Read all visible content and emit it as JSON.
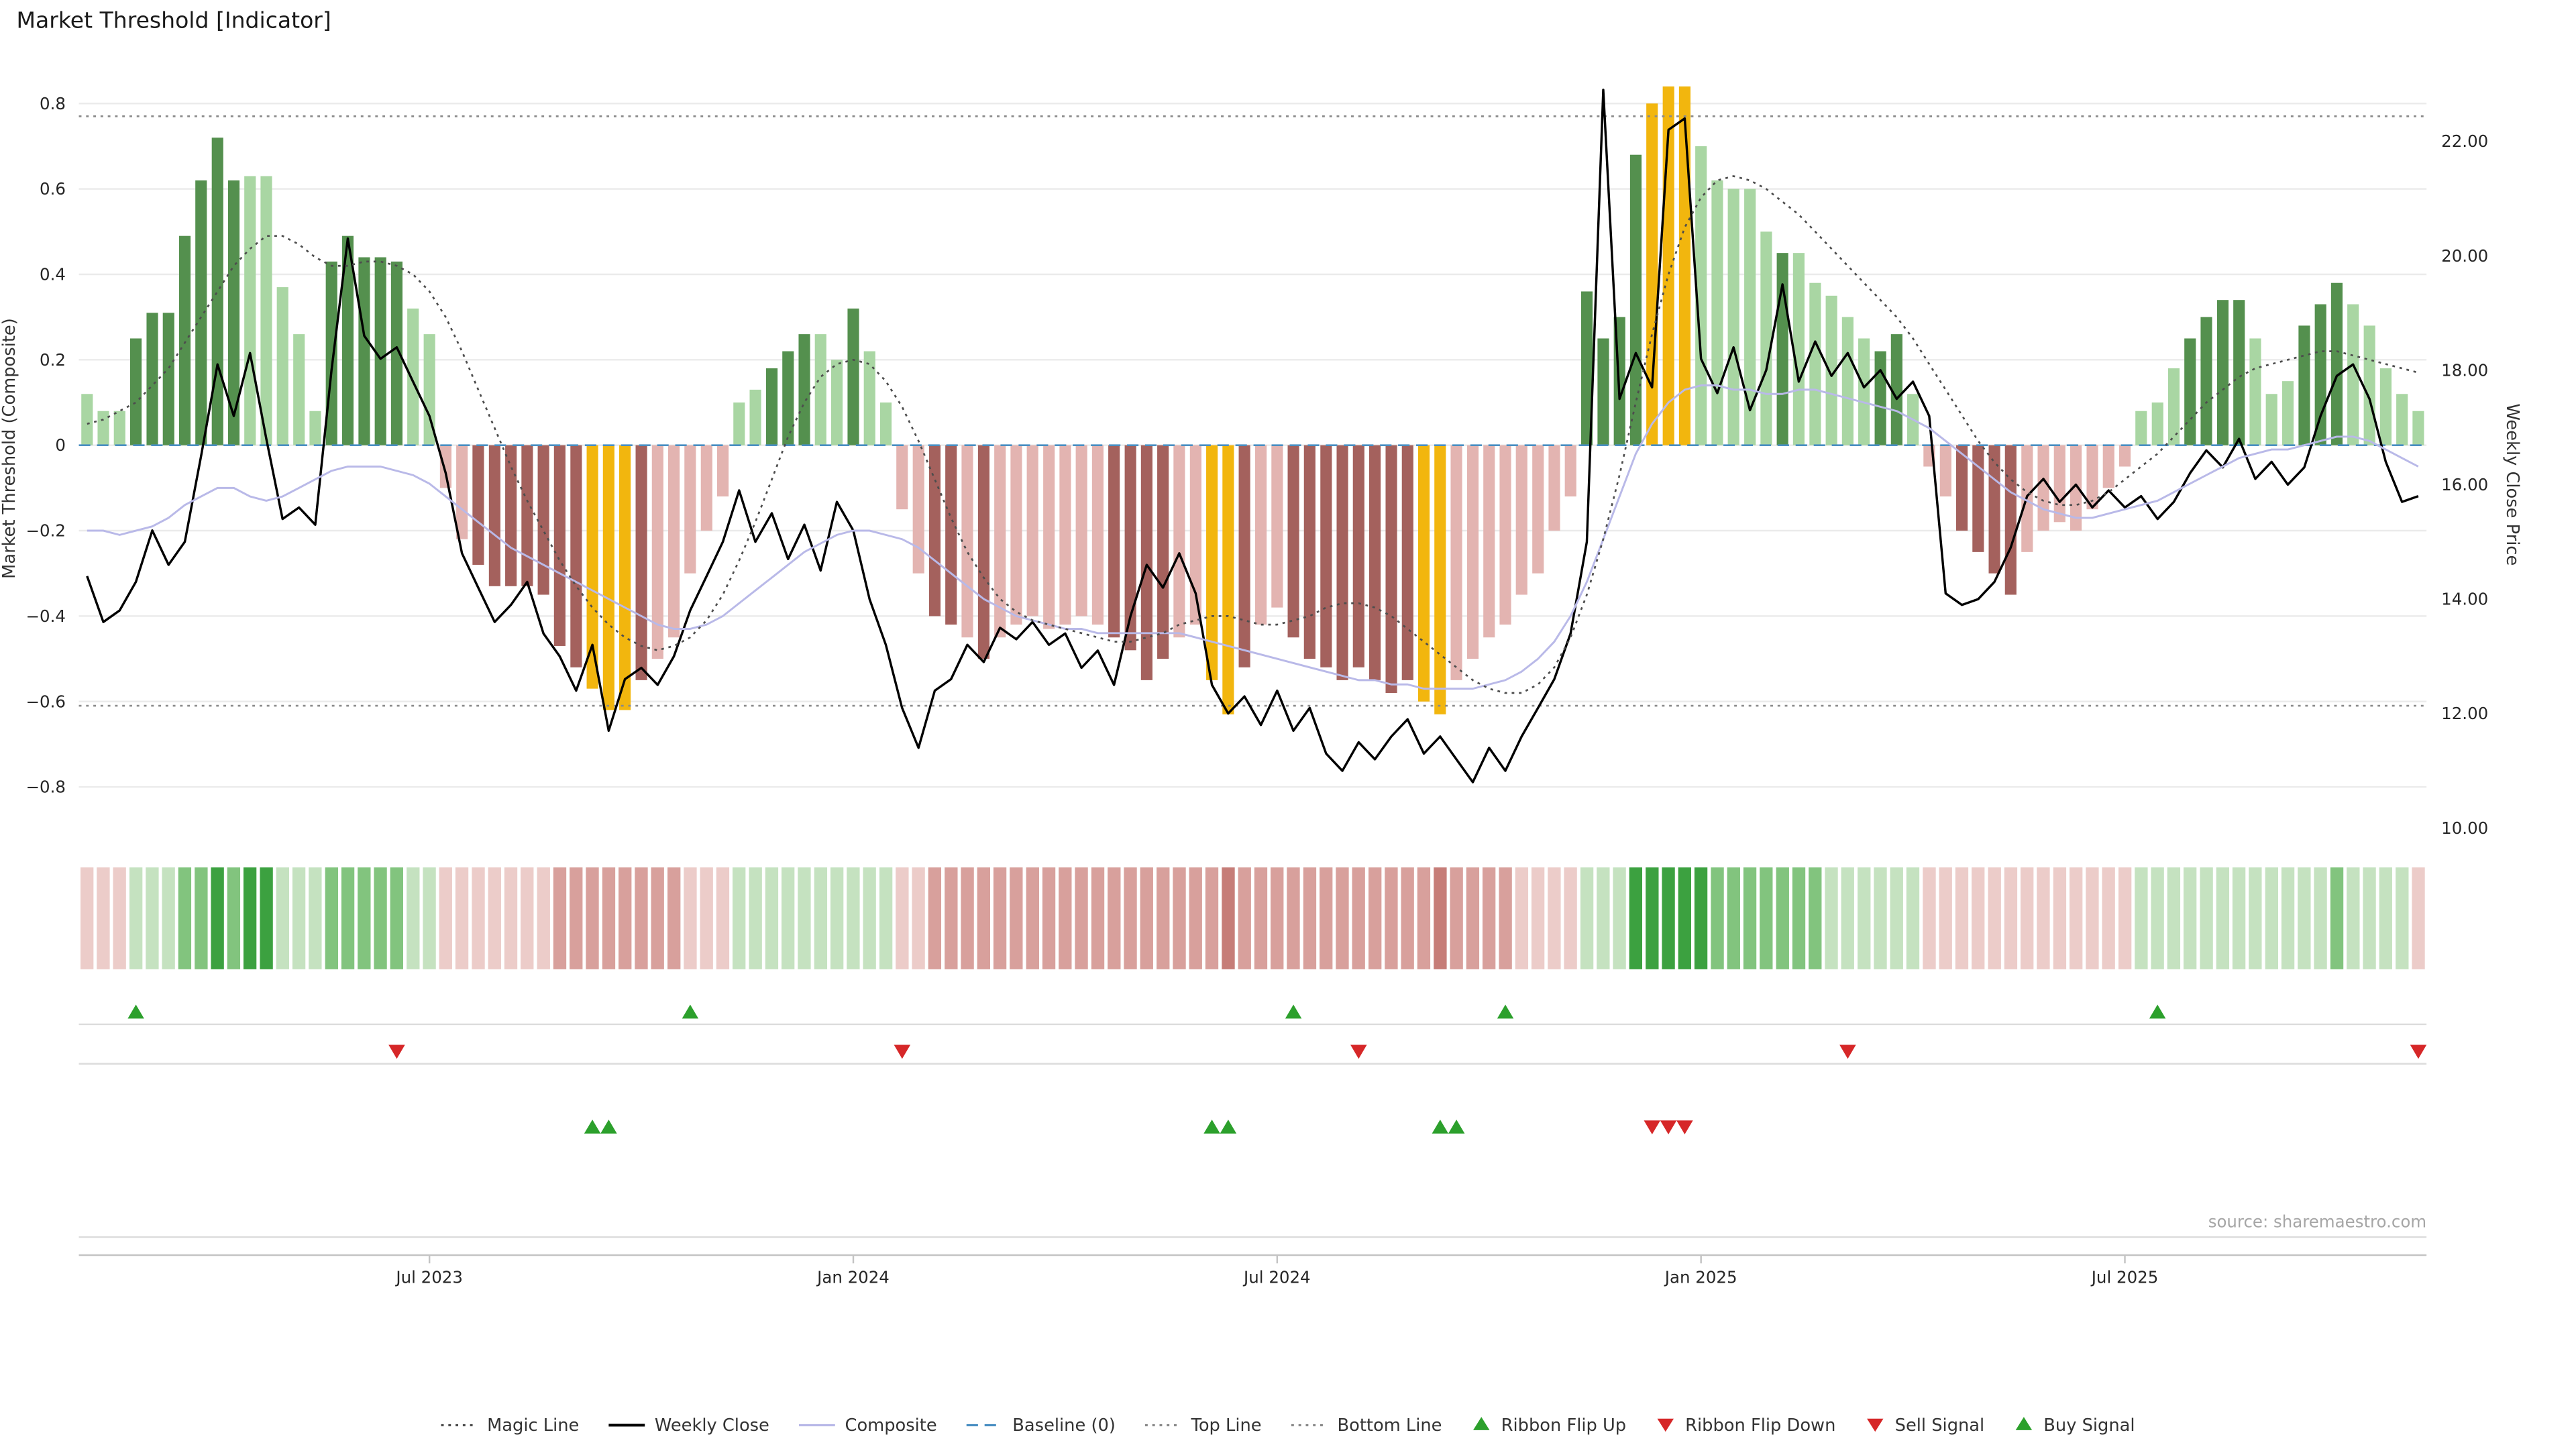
{
  "title": "Market Threshold [Indicator]",
  "source": "source: sharemaestro.com",
  "axes": {
    "left": {
      "label": "Market Threshold (Composite)",
      "ticks": [
        {
          "label": "0.8",
          "value": 0.8
        },
        {
          "label": "0.6",
          "value": 0.6
        },
        {
          "label": "0.4",
          "value": 0.4
        },
        {
          "label": "0.2",
          "value": 0.2
        },
        {
          "label": "0",
          "value": 0
        },
        {
          "label": "−0.2",
          "value": -0.2
        },
        {
          "label": "−0.4",
          "value": -0.4
        },
        {
          "label": "−0.6",
          "value": -0.6
        },
        {
          "label": "−0.8",
          "value": -0.8
        }
      ]
    },
    "right": {
      "label": "Weekly Close Price",
      "ticks": [
        {
          "label": "22.00",
          "value": 22
        },
        {
          "label": "20.00",
          "value": 20
        },
        {
          "label": "18.00",
          "value": 18
        },
        {
          "label": "16.00",
          "value": 16
        },
        {
          "label": "14.00",
          "value": 14
        },
        {
          "label": "12.00",
          "value": 12
        },
        {
          "label": "10.00",
          "value": 10
        }
      ]
    },
    "x": {
      "ticks": [
        {
          "label": "Jul 2023",
          "index": 21
        },
        {
          "label": "Jan 2024",
          "index": 47
        },
        {
          "label": "Jul 2024",
          "index": 73
        },
        {
          "label": "Jan 2025",
          "index": 99
        },
        {
          "label": "Jul 2025",
          "index": 125
        }
      ]
    }
  },
  "colors": {
    "bar_palette": {
      "dg": "#54904e",
      "lg": "#a9d6a3",
      "gd": "#f2b60e",
      "pk": "#e3b4b1",
      "dr": "#a4615d"
    },
    "ribbon_palette": {
      "3": "#3ca140",
      "2": "#82c47e",
      "1": "#c5e2c0",
      "-1": "#ecccc9",
      "-2": "#d8a09c",
      "-3": "#c67d78"
    },
    "signal_green": "#2ca02c",
    "signal_red": "#d62728",
    "grid": "#ebebeb",
    "separator": "#dcdcdc",
    "axis_line": "#c4c4c4"
  },
  "chart_data": {
    "type": "bar",
    "title": "Market Threshold [Indicator]",
    "ylabel_left": "Market Threshold (Composite)",
    "ylabel_right": "Weekly Close Price",
    "ylim_left": [
      -0.9,
      0.9
    ],
    "ylim_right": [
      10,
      22
    ],
    "x_unit": "week",
    "x_span": "Feb 2023 - Nov 2025",
    "n": 144,
    "bars": {
      "name": "Market Threshold",
      "values": [
        0.12,
        0.08,
        0.08,
        0.25,
        0.31,
        0.31,
        0.49,
        0.62,
        0.72,
        0.62,
        0.63,
        0.63,
        0.37,
        0.26,
        0.08,
        0.43,
        0.49,
        0.44,
        0.44,
        0.43,
        0.32,
        0.26,
        -0.1,
        -0.22,
        -0.28,
        -0.33,
        -0.33,
        -0.33,
        -0.35,
        -0.47,
        -0.52,
        -0.57,
        -0.62,
        -0.62,
        -0.55,
        -0.5,
        -0.45,
        -0.3,
        -0.2,
        -0.12,
        0.1,
        0.13,
        0.18,
        0.22,
        0.26,
        0.26,
        0.2,
        0.32,
        0.22,
        0.1,
        -0.15,
        -0.3,
        -0.4,
        -0.42,
        -0.45,
        -0.5,
        -0.45,
        -0.42,
        -0.4,
        -0.43,
        -0.42,
        -0.4,
        -0.42,
        -0.45,
        -0.48,
        -0.55,
        -0.5,
        -0.45,
        -0.42,
        -0.55,
        -0.63,
        -0.52,
        -0.42,
        -0.38,
        -0.45,
        -0.5,
        -0.52,
        -0.55,
        -0.52,
        -0.55,
        -0.58,
        -0.55,
        -0.6,
        -0.63,
        -0.55,
        -0.5,
        -0.45,
        -0.42,
        -0.35,
        -0.3,
        -0.2,
        -0.12,
        0.36,
        0.25,
        0.3,
        0.68,
        0.8,
        0.84,
        0.84,
        0.7,
        0.62,
        0.6,
        0.6,
        0.5,
        0.45,
        0.45,
        0.38,
        0.35,
        0.3,
        0.25,
        0.22,
        0.26,
        0.12,
        -0.05,
        -0.12,
        -0.2,
        -0.25,
        -0.3,
        -0.35,
        -0.25,
        -0.2,
        -0.18,
        -0.2,
        -0.15,
        -0.1,
        -0.05,
        0.08,
        0.1,
        0.18,
        0.25,
        0.3,
        0.34,
        0.34,
        0.25,
        0.12,
        0.15,
        0.28,
        0.33,
        0.38,
        0.33,
        0.28,
        0.18,
        0.12,
        0.08
      ],
      "colors": [
        "lg",
        "lg",
        "lg",
        "dg",
        "dg",
        "dg",
        "dg",
        "dg",
        "dg",
        "dg",
        "lg",
        "lg",
        "lg",
        "lg",
        "lg",
        "dg",
        "dg",
        "dg",
        "dg",
        "dg",
        "lg",
        "lg",
        "pk",
        "pk",
        "dr",
        "dr",
        "dr",
        "dr",
        "dr",
        "dr",
        "dr",
        "gd",
        "gd",
        "gd",
        "dr",
        "pk",
        "pk",
        "pk",
        "pk",
        "pk",
        "lg",
        "lg",
        "dg",
        "dg",
        "dg",
        "lg",
        "lg",
        "dg",
        "lg",
        "lg",
        "pk",
        "pk",
        "dr",
        "dr",
        "pk",
        "dr",
        "pk",
        "pk",
        "pk",
        "pk",
        "pk",
        "pk",
        "pk",
        "dr",
        "dr",
        "dr",
        "dr",
        "pk",
        "pk",
        "gd",
        "gd",
        "dr",
        "pk",
        "pk",
        "dr",
        "dr",
        "dr",
        "dr",
        "dr",
        "dr",
        "dr",
        "dr",
        "gd",
        "gd",
        "pk",
        "pk",
        "pk",
        "pk",
        "pk",
        "pk",
        "pk",
        "pk",
        "dg",
        "dg",
        "dg",
        "dg",
        "gd",
        "gd",
        "gd",
        "lg",
        "lg",
        "lg",
        "lg",
        "lg",
        "dg",
        "lg",
        "lg",
        "lg",
        "lg",
        "lg",
        "dg",
        "dg",
        "lg",
        "pk",
        "pk",
        "dr",
        "dr",
        "dr",
        "dr",
        "pk",
        "pk",
        "pk",
        "pk",
        "pk",
        "pk",
        "pk",
        "lg",
        "lg",
        "lg",
        "dg",
        "dg",
        "dg",
        "dg",
        "lg",
        "lg",
        "lg",
        "dg",
        "dg",
        "dg",
        "lg",
        "lg",
        "lg",
        "lg",
        "lg"
      ]
    },
    "lines": [
      {
        "name": "Weekly Close",
        "axis": "right",
        "color": "#000000",
        "style": "solid",
        "width": 1.4,
        "values": [
          14.4,
          13.6,
          13.8,
          14.3,
          15.2,
          14.6,
          15.0,
          16.5,
          18.1,
          17.2,
          18.3,
          16.8,
          15.4,
          15.6,
          15.3,
          18.0,
          20.3,
          18.6,
          18.2,
          18.4,
          17.8,
          17.2,
          16.2,
          14.8,
          14.2,
          13.6,
          13.9,
          14.3,
          13.4,
          13.0,
          12.4,
          13.2,
          11.7,
          12.6,
          12.8,
          12.5,
          13.0,
          13.8,
          14.4,
          15.0,
          15.9,
          15.0,
          15.5,
          14.7,
          15.3,
          14.5,
          15.7,
          15.2,
          14.0,
          13.2,
          12.1,
          11.4,
          12.4,
          12.6,
          13.2,
          12.9,
          13.5,
          13.3,
          13.6,
          13.2,
          13.4,
          12.8,
          13.1,
          12.5,
          13.7,
          14.6,
          14.2,
          14.8,
          14.1,
          12.5,
          12.0,
          12.3,
          11.8,
          12.4,
          11.7,
          12.1,
          11.3,
          11.0,
          11.5,
          11.2,
          11.6,
          11.9,
          11.3,
          11.6,
          11.2,
          10.8,
          11.4,
          11.0,
          11.6,
          12.1,
          12.6,
          13.4,
          15.0,
          22.9,
          17.5,
          18.3,
          17.7,
          22.2,
          22.4,
          18.2,
          17.6,
          18.4,
          17.3,
          18.0,
          19.5,
          17.8,
          18.5,
          17.9,
          18.3,
          17.7,
          18.0,
          17.5,
          17.8,
          17.2,
          14.1,
          13.9,
          14.0,
          14.3,
          14.9,
          15.8,
          16.1,
          15.7,
          16.0,
          15.6,
          15.9,
          15.6,
          15.8,
          15.4,
          15.7,
          16.2,
          16.6,
          16.3,
          16.8,
          16.1,
          16.4,
          16.0,
          16.3,
          17.2,
          17.9,
          18.1,
          17.5,
          16.4,
          15.7,
          15.8
        ]
      },
      {
        "name": "Composite",
        "axis": "left",
        "color": "#b9b9e8",
        "style": "solid",
        "width": 1.2,
        "values": [
          -0.2,
          -0.2,
          -0.21,
          -0.2,
          -0.19,
          -0.17,
          -0.14,
          -0.12,
          -0.1,
          -0.1,
          -0.12,
          -0.13,
          -0.12,
          -0.1,
          -0.08,
          -0.06,
          -0.05,
          -0.05,
          -0.05,
          -0.06,
          -0.07,
          -0.09,
          -0.12,
          -0.15,
          -0.18,
          -0.21,
          -0.24,
          -0.26,
          -0.28,
          -0.3,
          -0.32,
          -0.34,
          -0.36,
          -0.38,
          -0.4,
          -0.42,
          -0.43,
          -0.43,
          -0.42,
          -0.4,
          -0.37,
          -0.34,
          -0.31,
          -0.28,
          -0.25,
          -0.23,
          -0.21,
          -0.2,
          -0.2,
          -0.21,
          -0.22,
          -0.24,
          -0.27,
          -0.3,
          -0.33,
          -0.36,
          -0.38,
          -0.4,
          -0.41,
          -0.42,
          -0.43,
          -0.43,
          -0.44,
          -0.44,
          -0.44,
          -0.44,
          -0.44,
          -0.44,
          -0.45,
          -0.46,
          -0.47,
          -0.48,
          -0.49,
          -0.5,
          -0.51,
          -0.52,
          -0.53,
          -0.54,
          -0.55,
          -0.55,
          -0.56,
          -0.56,
          -0.57,
          -0.57,
          -0.57,
          -0.57,
          -0.56,
          -0.55,
          -0.53,
          -0.5,
          -0.46,
          -0.4,
          -0.32,
          -0.22,
          -0.12,
          -0.02,
          0.05,
          0.1,
          0.13,
          0.14,
          0.14,
          0.13,
          0.13,
          0.12,
          0.12,
          0.13,
          0.13,
          0.12,
          0.11,
          0.1,
          0.09,
          0.08,
          0.06,
          0.04,
          0.01,
          -0.02,
          -0.05,
          -0.08,
          -0.11,
          -0.13,
          -0.15,
          -0.16,
          -0.17,
          -0.17,
          -0.16,
          -0.15,
          -0.14,
          -0.13,
          -0.11,
          -0.09,
          -0.07,
          -0.05,
          -0.03,
          -0.02,
          -0.01,
          -0.01,
          0.0,
          0.01,
          0.02,
          0.02,
          0.01,
          -0.01,
          -0.03,
          -0.05
        ]
      },
      {
        "name": "Magic Line",
        "axis": "left",
        "color": "#4d4d4d",
        "style": "dotted",
        "width": 1.1,
        "values": [
          0.05,
          0.06,
          0.08,
          0.1,
          0.14,
          0.18,
          0.24,
          0.3,
          0.36,
          0.42,
          0.46,
          0.49,
          0.49,
          0.47,
          0.44,
          0.42,
          0.42,
          0.43,
          0.43,
          0.42,
          0.4,
          0.36,
          0.3,
          0.22,
          0.13,
          0.04,
          -0.05,
          -0.13,
          -0.2,
          -0.27,
          -0.33,
          -0.38,
          -0.42,
          -0.45,
          -0.47,
          -0.48,
          -0.47,
          -0.45,
          -0.41,
          -0.35,
          -0.27,
          -0.18,
          -0.08,
          0.02,
          0.1,
          0.16,
          0.19,
          0.2,
          0.19,
          0.15,
          0.09,
          0.01,
          -0.08,
          -0.17,
          -0.25,
          -0.31,
          -0.36,
          -0.39,
          -0.41,
          -0.42,
          -0.43,
          -0.44,
          -0.45,
          -0.46,
          -0.46,
          -0.45,
          -0.44,
          -0.42,
          -0.41,
          -0.4,
          -0.4,
          -0.41,
          -0.42,
          -0.42,
          -0.41,
          -0.4,
          -0.38,
          -0.37,
          -0.37,
          -0.38,
          -0.4,
          -0.43,
          -0.46,
          -0.49,
          -0.52,
          -0.55,
          -0.57,
          -0.58,
          -0.58,
          -0.56,
          -0.52,
          -0.45,
          -0.35,
          -0.22,
          -0.07,
          0.1,
          0.26,
          0.4,
          0.51,
          0.58,
          0.62,
          0.63,
          0.62,
          0.6,
          0.57,
          0.54,
          0.5,
          0.46,
          0.42,
          0.38,
          0.34,
          0.3,
          0.25,
          0.19,
          0.13,
          0.07,
          0.01,
          -0.04,
          -0.08,
          -0.11,
          -0.13,
          -0.14,
          -0.14,
          -0.13,
          -0.11,
          -0.08,
          -0.05,
          -0.02,
          0.02,
          0.06,
          0.1,
          0.13,
          0.16,
          0.18,
          0.19,
          0.2,
          0.21,
          0.22,
          0.22,
          0.21,
          0.2,
          0.19,
          0.18,
          0.17
        ]
      }
    ],
    "hlines": [
      {
        "name": "Top Line",
        "value": 0.77,
        "style": "dotted",
        "color": "#8a8a8a"
      },
      {
        "name": "Bottom Line",
        "value": -0.61,
        "style": "dotted",
        "color": "#8a8a8a"
      },
      {
        "name": "Baseline (0)",
        "value": 0,
        "style": "dashed",
        "color": "#4a8fc2"
      }
    ],
    "ribbon": [
      -1,
      -1,
      -1,
      1,
      1,
      1,
      2,
      2,
      3,
      2,
      3,
      3,
      1,
      1,
      1,
      2,
      2,
      2,
      2,
      2,
      1,
      1,
      -1,
      -1,
      -1,
      -1,
      -1,
      -1,
      -1,
      -2,
      -2,
      -2,
      -2,
      -2,
      -2,
      -2,
      -2,
      -1,
      -1,
      -1,
      1,
      1,
      1,
      1,
      1,
      1,
      1,
      1,
      1,
      1,
      -1,
      -1,
      -2,
      -2,
      -2,
      -2,
      -2,
      -2,
      -2,
      -2,
      -2,
      -2,
      -2,
      -2,
      -2,
      -2,
      -2,
      -2,
      -2,
      -2,
      -3,
      -2,
      -2,
      -2,
      -2,
      -2,
      -2,
      -2,
      -2,
      -2,
      -2,
      -2,
      -2,
      -3,
      -2,
      -2,
      -2,
      -2,
      -1,
      -1,
      -1,
      -1,
      1,
      1,
      1,
      3,
      3,
      3,
      3,
      3,
      2,
      2,
      2,
      2,
      2,
      2,
      2,
      1,
      1,
      1,
      1,
      1,
      1,
      -1,
      -1,
      -1,
      -1,
      -1,
      -1,
      -1,
      -1,
      -1,
      -1,
      -1,
      -1,
      -1,
      1,
      1,
      1,
      1,
      1,
      1,
      1,
      1,
      1,
      1,
      1,
      1,
      2,
      1,
      1,
      1,
      1,
      -1
    ],
    "signals": {
      "ribbon_flip_up": [
        3,
        37,
        74,
        87,
        127
      ],
      "ribbon_flip_down": [
        19,
        50,
        78,
        108,
        143
      ],
      "buy_signal": [
        31,
        32,
        69,
        70,
        83,
        84
      ],
      "sell_signal": [
        96,
        97,
        98
      ]
    }
  },
  "legend": [
    {
      "label": "Magic Line",
      "marker": "dotted-line",
      "color": "#4d4d4d"
    },
    {
      "label": "Weekly Close",
      "marker": "solid-line",
      "color": "#000000"
    },
    {
      "label": "Composite",
      "marker": "solid-line",
      "color": "#b9b9e8"
    },
    {
      "label": "Baseline (0)",
      "marker": "dashed-line",
      "color": "#4a8fc2"
    },
    {
      "label": "Top Line",
      "marker": "dotted-line",
      "color": "#8a8a8a"
    },
    {
      "label": "Bottom Line",
      "marker": "dotted-line",
      "color": "#8a8a8a"
    },
    {
      "label": "Ribbon Flip Up",
      "marker": "triangle-up",
      "color": "#2ca02c"
    },
    {
      "label": "Ribbon Flip Down",
      "marker": "triangle-down",
      "color": "#d62728"
    },
    {
      "label": "Sell Signal",
      "marker": "triangle-down",
      "color": "#d62728"
    },
    {
      "label": "Buy Signal",
      "marker": "triangle-up",
      "color": "#2ca02c"
    }
  ]
}
